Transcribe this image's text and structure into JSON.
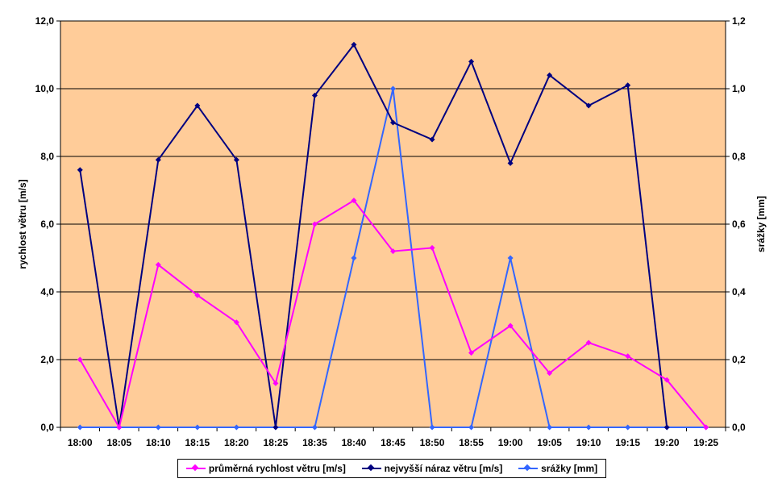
{
  "chart_data": {
    "type": "line",
    "title": "",
    "xlabel": "",
    "ylabel": "rychlost větru [m/s]",
    "y2label": "srážky [mm]",
    "categories": [
      "18:00",
      "18:05",
      "18:10",
      "18:15",
      "18:20",
      "18:25",
      "18:35",
      "18:40",
      "18:45",
      "18:50",
      "18:55",
      "19:00",
      "19:05",
      "19:10",
      "19:15",
      "19:20",
      "19:25"
    ],
    "ylim": [
      0,
      12
    ],
    "y2lim": [
      0,
      1.2
    ],
    "yticks": [
      "0,0",
      "2,0",
      "4,0",
      "6,0",
      "8,0",
      "10,0",
      "12,0"
    ],
    "y2ticks": [
      "0,0",
      "0,2",
      "0,4",
      "0,6",
      "0,8",
      "1,0",
      "1,2"
    ],
    "grid": true,
    "legend_position": "bottom",
    "plot_background": "#FFCC99",
    "series": [
      {
        "name": "průměrná rychlost větru [m/s]",
        "axis": "left",
        "color": "#FF00FF",
        "values": [
          2.0,
          0.0,
          4.8,
          3.9,
          3.1,
          1.3,
          6.0,
          6.7,
          5.2,
          5.3,
          2.2,
          3.0,
          1.6,
          2.5,
          2.1,
          1.4,
          0.0
        ]
      },
      {
        "name": "nejvyšší náraz větru [m/s]",
        "axis": "left",
        "color": "#000080",
        "values": [
          7.6,
          0.0,
          7.9,
          9.5,
          7.9,
          0.0,
          9.8,
          11.3,
          9.0,
          8.5,
          10.8,
          7.8,
          10.4,
          9.5,
          10.1,
          0.0,
          null
        ]
      },
      {
        "name": "srážky [mm]",
        "axis": "right",
        "color": "#3366FF",
        "values": [
          0.0,
          0.0,
          0.0,
          0.0,
          0.0,
          0.0,
          0.0,
          0.5,
          1.0,
          0.0,
          0.0,
          0.5,
          0.0,
          0.0,
          0.0,
          0.0,
          0.0
        ]
      }
    ]
  }
}
